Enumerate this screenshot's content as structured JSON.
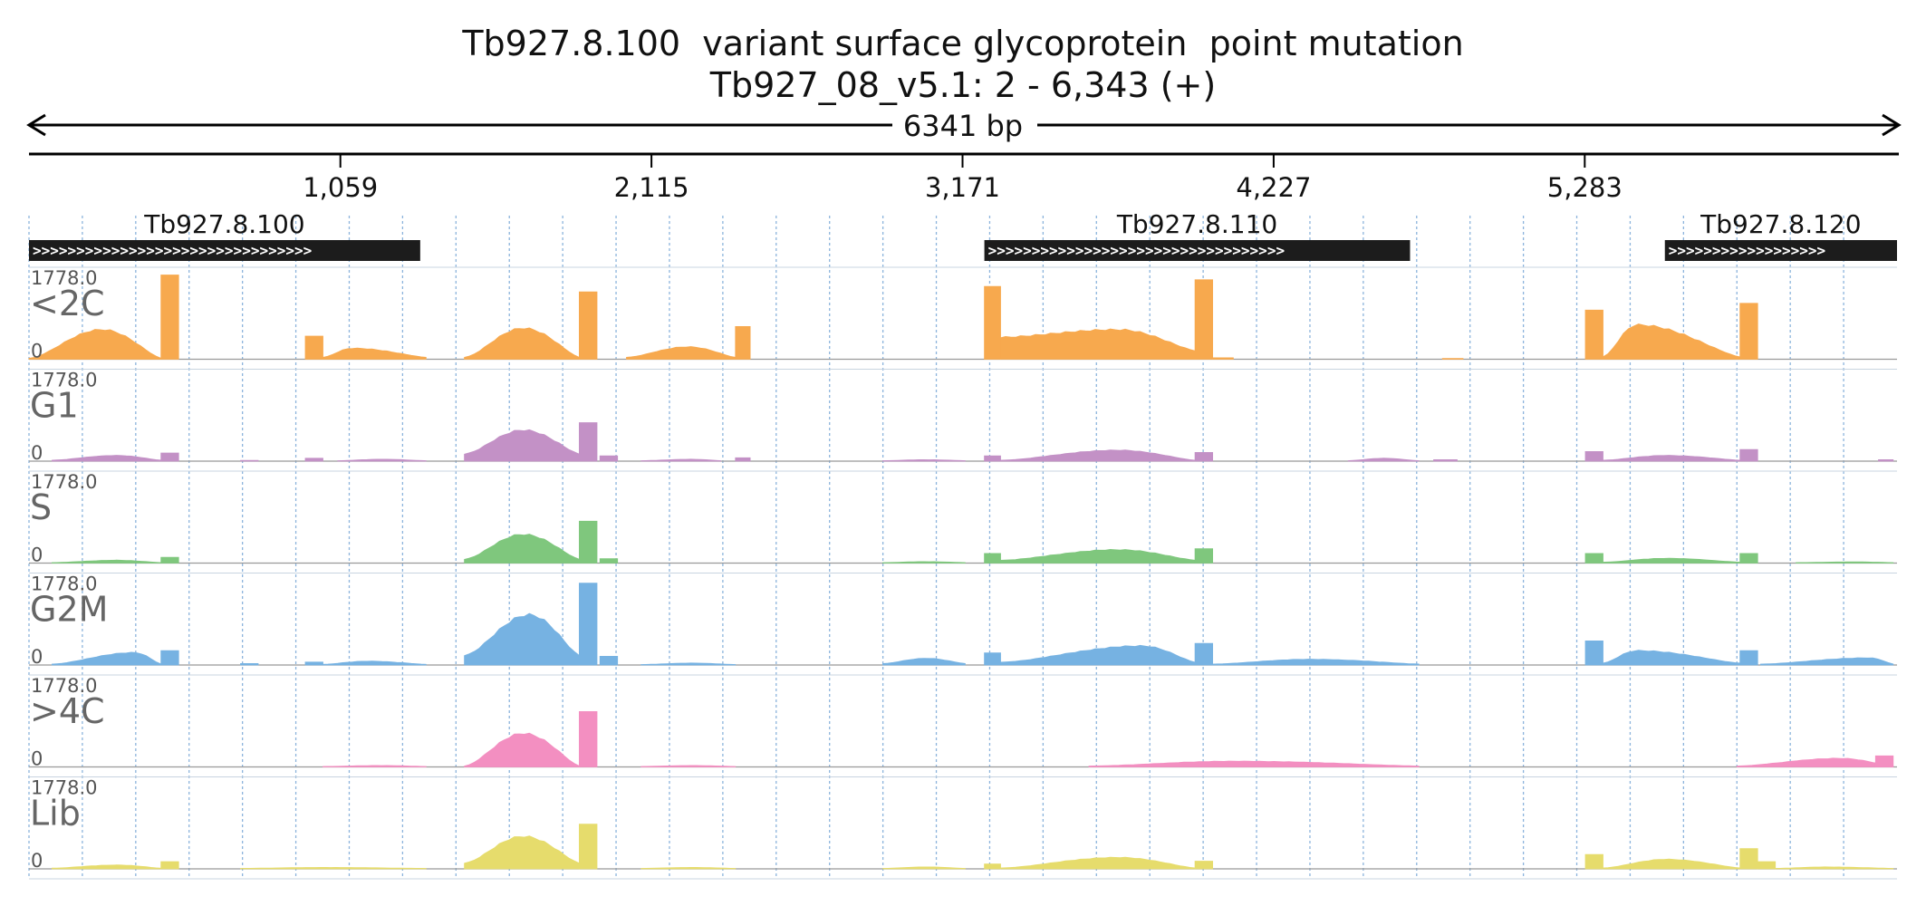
{
  "chart_data": {
    "type": "area",
    "title_line1": "Tb927.8.100  variant surface glycoprotein  point mutation",
    "title_line2": "Tb927_08_v5.1: 2 - 6,343 (+)",
    "span_label": "6341 bp",
    "xlim": [
      2,
      6343
    ],
    "ticks": [
      {
        "pos": 1059,
        "label": "1,059"
      },
      {
        "pos": 2115,
        "label": "2,115"
      },
      {
        "pos": 3171,
        "label": "3,171"
      },
      {
        "pos": 4227,
        "label": "4,227"
      },
      {
        "pos": 5283,
        "label": "5,283"
      }
    ],
    "genes": [
      {
        "name": "Tb927.8.100",
        "start": 2,
        "end": 1330,
        "strand": "+"
      },
      {
        "name": "Tb927.8.110",
        "start": 3245,
        "end": 4690,
        "strand": "+"
      },
      {
        "name": "Tb927.8.120",
        "start": 5555,
        "end": 6343,
        "strand": "+"
      }
    ],
    "tracks": [
      {
        "name": "<2C",
        "color": "#f7a94e",
        "max_label": "1778.0",
        "min_label": "0",
        "ylim": [
          0,
          1778
        ],
        "peaks": [
          {
            "a": 2,
            "b": 450,
            "p": 250,
            "h": 620,
            "bl": 20
          },
          {
            "a": 450,
            "b": 510,
            "flat": 1750
          },
          {
            "a": 940,
            "b": 1000,
            "flat": 480
          },
          {
            "a": 1000,
            "b": 1350,
            "p": 1100,
            "h": 230,
            "bl": 40
          },
          {
            "a": 1480,
            "b": 1870,
            "p": 1680,
            "h": 650,
            "bl": 40
          },
          {
            "a": 1870,
            "b": 1930,
            "flat": 1400
          },
          {
            "a": 2030,
            "b": 2400,
            "p": 2240,
            "h": 260,
            "bl": 40
          },
          {
            "a": 2400,
            "b": 2450,
            "flat": 680
          },
          {
            "a": 3245,
            "b": 3300,
            "flat": 1510
          },
          {
            "a": 3300,
            "b": 3960,
            "p": 3700,
            "h": 620,
            "bl": 180,
            "lv": 460
          },
          {
            "a": 3960,
            "b": 4020,
            "flat": 1650
          },
          {
            "a": 4020,
            "b": 4090,
            "flat": 30
          },
          {
            "a": 4800,
            "b": 4870,
            "flat": 15
          },
          {
            "a": 5285,
            "b": 5345,
            "flat": 1020
          },
          {
            "a": 5345,
            "b": 5810,
            "p": 5460,
            "h": 720,
            "bl": 50
          },
          {
            "a": 5810,
            "b": 5870,
            "flat": 1160
          }
        ]
      },
      {
        "name": "G1",
        "color": "#c391c6",
        "max_label": "1778.0",
        "min_label": "0",
        "ylim": [
          0,
          1778
        ],
        "peaks": [
          {
            "a": 80,
            "b": 450,
            "p": 300,
            "h": 120,
            "bl": 20
          },
          {
            "a": 450,
            "b": 510,
            "flat": 170
          },
          {
            "a": 720,
            "b": 780,
            "flat": 15
          },
          {
            "a": 940,
            "b": 1000,
            "flat": 60
          },
          {
            "a": 1050,
            "b": 1350,
            "p": 1200,
            "h": 40,
            "bl": 10
          },
          {
            "a": 1480,
            "b": 1870,
            "p": 1680,
            "h": 650,
            "bl": 150
          },
          {
            "a": 1870,
            "b": 1930,
            "flat": 800
          },
          {
            "a": 1940,
            "b": 2000,
            "flat": 110
          },
          {
            "a": 2080,
            "b": 2350,
            "p": 2250,
            "h": 40,
            "bl": 10
          },
          {
            "a": 2400,
            "b": 2450,
            "flat": 70
          },
          {
            "a": 2900,
            "b": 3180,
            "p": 3050,
            "h": 30,
            "bl": 10
          },
          {
            "a": 3245,
            "b": 3300,
            "flat": 110
          },
          {
            "a": 3300,
            "b": 3960,
            "p": 3700,
            "h": 230,
            "bl": 20
          },
          {
            "a": 3960,
            "b": 4020,
            "flat": 180
          },
          {
            "a": 4480,
            "b": 4720,
            "p": 4600,
            "h": 60,
            "bl": 10
          },
          {
            "a": 4770,
            "b": 4850,
            "flat": 30
          },
          {
            "a": 5285,
            "b": 5345,
            "flat": 200
          },
          {
            "a": 5345,
            "b": 5810,
            "p": 5560,
            "h": 120,
            "bl": 20
          },
          {
            "a": 5810,
            "b": 5870,
            "flat": 240
          },
          {
            "a": 6280,
            "b": 6330,
            "flat": 30
          }
        ]
      },
      {
        "name": "S",
        "color": "#7fc77d",
        "max_label": "1778.0",
        "min_label": "0",
        "ylim": [
          0,
          1778
        ],
        "peaks": [
          {
            "a": 80,
            "b": 450,
            "p": 300,
            "h": 60,
            "bl": 10
          },
          {
            "a": 450,
            "b": 510,
            "flat": 120
          },
          {
            "a": 1480,
            "b": 1870,
            "p": 1680,
            "h": 600,
            "bl": 80
          },
          {
            "a": 1870,
            "b": 1930,
            "flat": 870
          },
          {
            "a": 1940,
            "b": 2000,
            "flat": 90
          },
          {
            "a": 2900,
            "b": 3180,
            "p": 3050,
            "h": 30,
            "bl": 10
          },
          {
            "a": 3245,
            "b": 3300,
            "flat": 200
          },
          {
            "a": 3300,
            "b": 3960,
            "p": 3700,
            "h": 280,
            "bl": 60
          },
          {
            "a": 3960,
            "b": 4020,
            "flat": 300
          },
          {
            "a": 5285,
            "b": 5345,
            "flat": 200
          },
          {
            "a": 5345,
            "b": 5810,
            "p": 5560,
            "h": 100,
            "bl": 20
          },
          {
            "a": 5810,
            "b": 5870,
            "flat": 200
          },
          {
            "a": 6000,
            "b": 6330,
            "p": 6200,
            "h": 25,
            "bl": 10
          }
        ]
      },
      {
        "name": "G2M",
        "color": "#76b2e2",
        "max_label": "1778.0",
        "min_label": "0",
        "ylim": [
          0,
          1778
        ],
        "peaks": [
          {
            "a": 80,
            "b": 450,
            "p": 360,
            "h": 260,
            "bl": 20
          },
          {
            "a": 450,
            "b": 510,
            "flat": 300
          },
          {
            "a": 720,
            "b": 780,
            "flat": 30
          },
          {
            "a": 940,
            "b": 1000,
            "flat": 60
          },
          {
            "a": 1000,
            "b": 1350,
            "p": 1150,
            "h": 80,
            "bl": 15
          },
          {
            "a": 1480,
            "b": 1870,
            "p": 1700,
            "h": 1050,
            "bl": 200
          },
          {
            "a": 1870,
            "b": 1930,
            "flat": 1700
          },
          {
            "a": 1940,
            "b": 2000,
            "flat": 180
          },
          {
            "a": 2080,
            "b": 2400,
            "p": 2250,
            "h": 40,
            "bl": 10
          },
          {
            "a": 2900,
            "b": 3180,
            "p": 3050,
            "h": 140,
            "bl": 30
          },
          {
            "a": 3245,
            "b": 3300,
            "flat": 250
          },
          {
            "a": 3300,
            "b": 3960,
            "p": 3780,
            "h": 400,
            "bl": 60
          },
          {
            "a": 3960,
            "b": 4020,
            "flat": 450
          },
          {
            "a": 4020,
            "b": 4720,
            "p": 4350,
            "h": 120,
            "bl": 20
          },
          {
            "a": 5285,
            "b": 5345,
            "flat": 500
          },
          {
            "a": 5345,
            "b": 5810,
            "p": 5460,
            "h": 300,
            "bl": 40
          },
          {
            "a": 5810,
            "b": 5870,
            "flat": 300
          },
          {
            "a": 5880,
            "b": 6330,
            "p": 6250,
            "h": 150,
            "bl": 20
          }
        ]
      },
      {
        "name": ">4C",
        "color": "#f38fc1",
        "max_label": "1778.0",
        "min_label": "0",
        "ylim": [
          0,
          1778
        ],
        "peaks": [
          {
            "a": 1000,
            "b": 1350,
            "p": 1200,
            "h": 30,
            "bl": 10
          },
          {
            "a": 1480,
            "b": 1870,
            "p": 1680,
            "h": 700,
            "bl": 20
          },
          {
            "a": 1870,
            "b": 1930,
            "flat": 1150
          },
          {
            "a": 2080,
            "b": 2400,
            "p": 2250,
            "h": 30,
            "bl": 10
          },
          {
            "a": 3600,
            "b": 4720,
            "p": 4100,
            "h": 120,
            "bl": 20
          },
          {
            "a": 5800,
            "b": 6330,
            "p": 6150,
            "h": 180,
            "bl": 20
          },
          {
            "a": 6270,
            "b": 6330,
            "flat": 230
          }
        ]
      },
      {
        "name": "Lib",
        "color": "#e6dc6c",
        "max_label": "1778.0",
        "min_label": "0",
        "ylim": [
          0,
          1778
        ],
        "peaks": [
          {
            "a": 80,
            "b": 450,
            "p": 300,
            "h": 80,
            "bl": 15
          },
          {
            "a": 450,
            "b": 510,
            "flat": 150
          },
          {
            "a": 720,
            "b": 1350,
            "p": 1000,
            "h": 30,
            "bl": 10
          },
          {
            "a": 1480,
            "b": 1870,
            "p": 1680,
            "h": 680,
            "bl": 120
          },
          {
            "a": 1870,
            "b": 1930,
            "flat": 930
          },
          {
            "a": 2080,
            "b": 2400,
            "p": 2250,
            "h": 30,
            "bl": 10
          },
          {
            "a": 2900,
            "b": 3180,
            "p": 3050,
            "h": 40,
            "bl": 10
          },
          {
            "a": 3245,
            "b": 3300,
            "flat": 100
          },
          {
            "a": 3300,
            "b": 3960,
            "p": 3700,
            "h": 240,
            "bl": 20
          },
          {
            "a": 3960,
            "b": 4020,
            "flat": 160
          },
          {
            "a": 5285,
            "b": 5345,
            "flat": 300
          },
          {
            "a": 5345,
            "b": 5810,
            "p": 5560,
            "h": 200,
            "bl": 20
          },
          {
            "a": 5810,
            "b": 5870,
            "flat": 420
          },
          {
            "a": 5870,
            "b": 5930,
            "flat": 150
          },
          {
            "a": 5930,
            "b": 6330,
            "p": 6100,
            "h": 40,
            "bl": 10
          }
        ]
      }
    ]
  }
}
